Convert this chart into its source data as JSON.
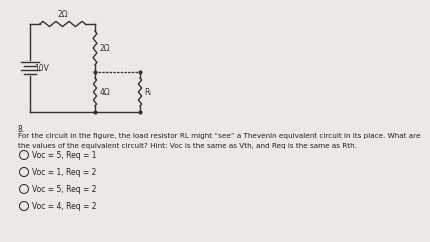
{
  "bg_color": "#ede8e3",
  "circuit": {
    "battery_label": "10V",
    "r1_label": "2Ω",
    "r2_label": "2Ω",
    "r3_label": "4Ω",
    "rl_label": "Rₗ"
  },
  "question_number": "8.",
  "question_line1": "For the circuit in the figure, the load resistor RL might “see” a Thevenin equivalent circuit in its place. What are",
  "question_line2": "the values of the equivalent circuit? Hint: Voc is the same as Vth, and Req is the same as Rth.",
  "options": [
    "Voc = 5, Req = 1",
    "Voc = 1, Req = 2",
    "Voc = 5, Req = 2",
    "Voc = 4, Req = 2"
  ],
  "text_color": "#222222",
  "circuit_color": "#333333"
}
